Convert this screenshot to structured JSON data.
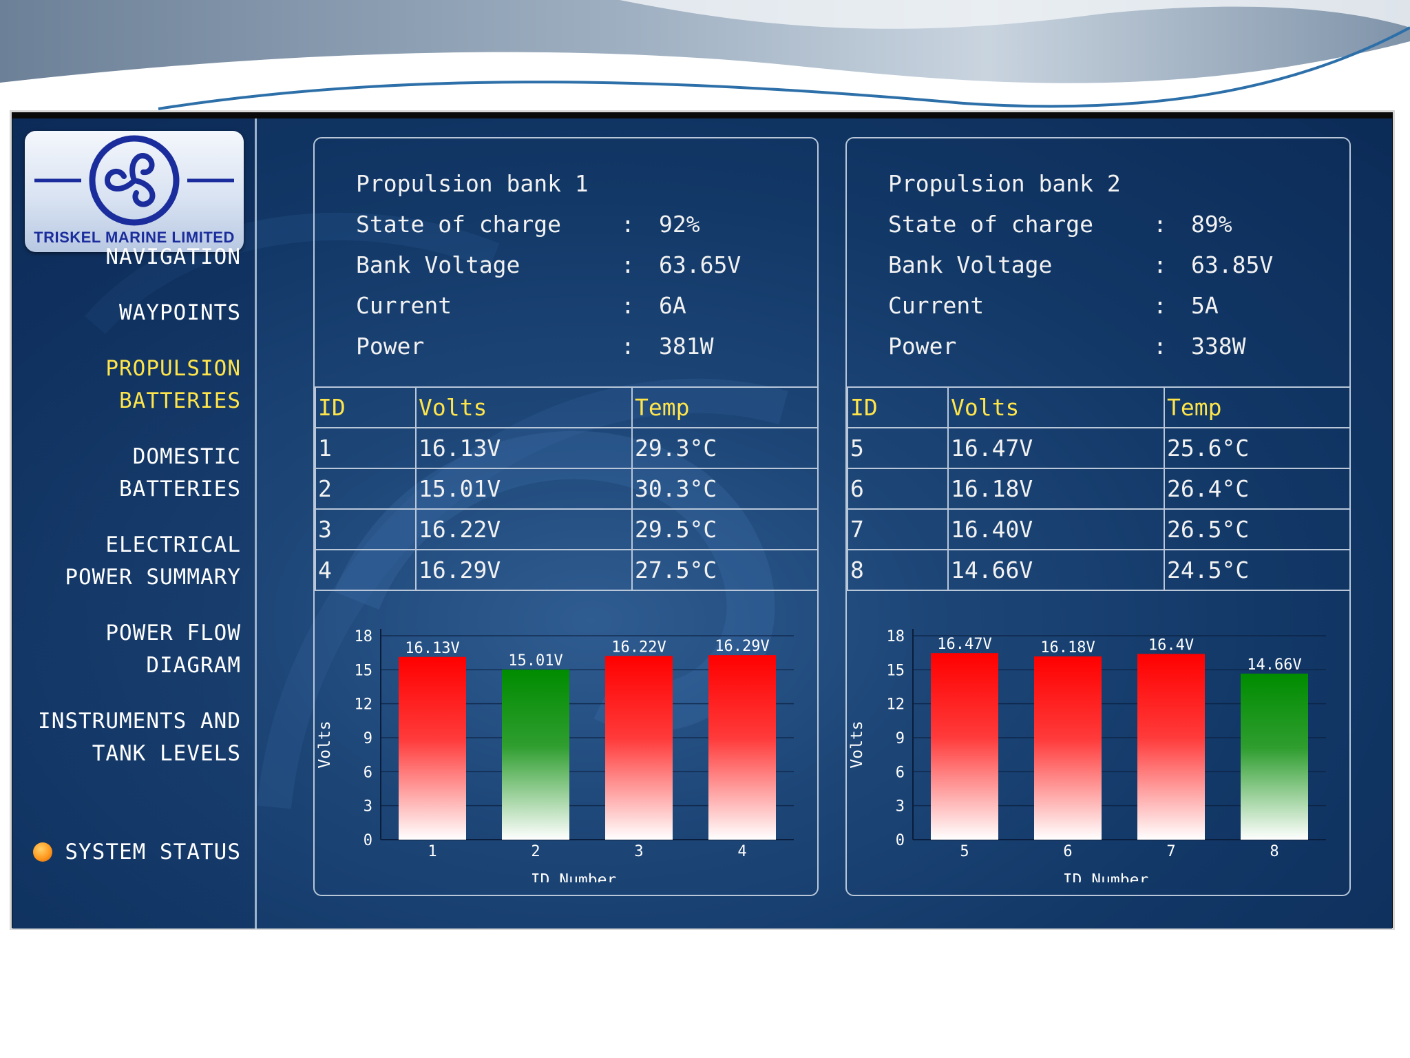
{
  "logo": {
    "company": "TRISKEL MARINE LIMITED"
  },
  "nav": {
    "navigation": "NAVIGATION",
    "waypoints": "WAYPOINTS",
    "propulsion_batteries": "PROPULSION\nBATTERIES",
    "domestic_batteries": "DOMESTIC\nBATTERIES",
    "electrical_power_summary": "ELECTRICAL\nPOWER SUMMARY",
    "power_flow_diagram": "POWER FLOW\nDIAGRAM",
    "instruments_tank_levels": "INSTRUMENTS AND\nTANK LEVELS",
    "system_status": "SYSTEM STATUS"
  },
  "colors": {
    "active_nav": "#ffe54a",
    "high_bar": "#ff0000",
    "low_bar": "#008c00",
    "status_dot": "#ff9a1e"
  },
  "bank1": {
    "title": "Propulsion bank 1",
    "rows": [
      {
        "label": "State of charge",
        "value": "92%"
      },
      {
        "label": "Bank Voltage",
        "value": "63.65V"
      },
      {
        "label": "Current",
        "value": "6A"
      },
      {
        "label": "Power",
        "value": "381W"
      }
    ],
    "table": {
      "headers": [
        "ID",
        "Volts",
        "Temp"
      ],
      "rows": [
        [
          "1",
          "16.13V",
          "29.3°C"
        ],
        [
          "2",
          "15.01V",
          "30.3°C"
        ],
        [
          "3",
          "16.22V",
          "29.5°C"
        ],
        [
          "4",
          "16.29V",
          "27.5°C"
        ]
      ]
    }
  },
  "bank2": {
    "title": "Propulsion bank 2",
    "rows": [
      {
        "label": "State of charge",
        "value": "89%"
      },
      {
        "label": "Bank Voltage",
        "value": "63.85V"
      },
      {
        "label": "Current",
        "value": "5A"
      },
      {
        "label": "Power",
        "value": "338W"
      }
    ],
    "table": {
      "headers": [
        "ID",
        "Volts",
        "Temp"
      ],
      "rows": [
        [
          "5",
          "16.47V",
          "25.6°C"
        ],
        [
          "6",
          "16.18V",
          "26.4°C"
        ],
        [
          "7",
          "16.40V",
          "26.5°C"
        ],
        [
          "8",
          "14.66V",
          "24.5°C"
        ]
      ]
    }
  },
  "chart_data": [
    {
      "type": "bar",
      "categories": [
        "1",
        "2",
        "3",
        "4"
      ],
      "values": [
        16.13,
        15.01,
        16.22,
        16.29
      ],
      "labels": [
        "16.13V",
        "15.01V",
        "16.22V",
        "16.29V"
      ],
      "status": [
        "high",
        "low",
        "high",
        "high"
      ],
      "xlabel": "ID Number",
      "ylabel": "Volts",
      "ylim": [
        0,
        18
      ],
      "yticks": [
        0,
        3,
        6,
        9,
        12,
        15,
        18
      ],
      "grid": true
    },
    {
      "type": "bar",
      "categories": [
        "5",
        "6",
        "7",
        "8"
      ],
      "values": [
        16.47,
        16.18,
        16.4,
        14.66
      ],
      "labels": [
        "16.47V",
        "16.18V",
        "16.4V",
        "14.66V"
      ],
      "status": [
        "high",
        "high",
        "high",
        "low"
      ],
      "xlabel": "ID Number",
      "ylabel": "Volts",
      "ylim": [
        0,
        18
      ],
      "yticks": [
        0,
        3,
        6,
        9,
        12,
        15,
        18
      ],
      "grid": true
    }
  ]
}
